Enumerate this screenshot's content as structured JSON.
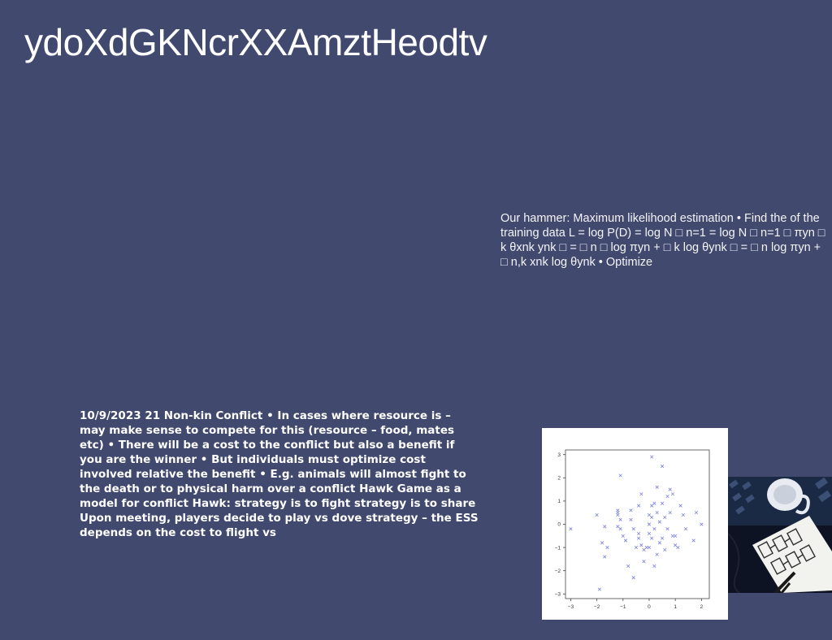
{
  "slide": {
    "title": "ydoXdGKNcrXXAmztHeodtv",
    "hammer_text": "Our hammer: Maximum likelihood estimation • Find the of the training data L = log P(D) = log N □ n=1 = log N □ n=1 □ πyn □ k θxnk ynk □ = □ n □ log πyn + □ k log θynk □ = □ n log πyn + □ n,k xnk log θynk • Optimize",
    "conflict_text": "10/9/2023 21 Non-kin Conflict • In cases where resource is – may make sense to compete for this (resource – food, mates etc) • There will be a cost to the conflict but also a benefit if you are the winner • But individuals must optimize cost involved relative the benefit • E.g. animals will almost fight to the death or to physical harm over a conflict Hawk Game as a model for conflict Hawk: strategy is to fight strategy is to share Upon meeting, players decide to play vs dove strategy – the ESS depends on the cost to flight vs"
  },
  "colors": {
    "background": "#41496f",
    "scatter_marker": "#7b7fe0"
  },
  "chart_data": {
    "type": "scatter",
    "x_ticks": [
      "−3",
      "−2",
      "−1",
      "0",
      "1",
      "2"
    ],
    "y_ticks": [
      "3",
      "2",
      "1",
      "0",
      "−1",
      "−2",
      "−3"
    ],
    "xlim": [
      -3.2,
      2.3
    ],
    "ylim": [
      -3.2,
      3.2
    ],
    "marker": "x",
    "points": [
      [
        0.1,
        2.9
      ],
      [
        -1.1,
        2.1
      ],
      [
        0.5,
        2.5
      ],
      [
        0.3,
        1.6
      ],
      [
        0.8,
        1.5
      ],
      [
        -0.3,
        1.3
      ],
      [
        -2.0,
        0.4
      ],
      [
        -1.2,
        0.6
      ],
      [
        -1.2,
        0.4
      ],
      [
        -0.7,
        0.6
      ],
      [
        -0.4,
        0.8
      ],
      [
        0.1,
        0.8
      ],
      [
        0.2,
        0.9
      ],
      [
        0.7,
        1.2
      ],
      [
        0.9,
        1.3
      ],
      [
        1.3,
        0.4
      ],
      [
        1.8,
        0.5
      ],
      [
        2.0,
        0.0
      ],
      [
        -3.0,
        -0.2
      ],
      [
        -1.7,
        -0.1
      ],
      [
        -1.8,
        -0.8
      ],
      [
        -1.6,
        -1.0
      ],
      [
        -1.7,
        -1.4
      ],
      [
        -1.2,
        -0.1
      ],
      [
        -1.1,
        0.2
      ],
      [
        -0.9,
        -0.7
      ],
      [
        -1.0,
        -0.5
      ],
      [
        -0.6,
        -0.2
      ],
      [
        -0.4,
        -0.6
      ],
      [
        -0.3,
        -0.9
      ],
      [
        -0.2,
        -1.1
      ],
      [
        -0.1,
        -1.0
      ],
      [
        0.0,
        -1.0
      ],
      [
        0.0,
        -0.4
      ],
      [
        0.0,
        0.0
      ],
      [
        0.1,
        -0.6
      ],
      [
        0.1,
        0.3
      ],
      [
        0.2,
        -0.2
      ],
      [
        0.3,
        0.5
      ],
      [
        0.3,
        -1.3
      ],
      [
        0.4,
        0.1
      ],
      [
        0.4,
        -0.8
      ],
      [
        0.5,
        -0.6
      ],
      [
        0.6,
        -1.1
      ],
      [
        0.6,
        0.3
      ],
      [
        0.7,
        -0.2
      ],
      [
        0.8,
        0.5
      ],
      [
        0.9,
        -0.5
      ],
      [
        1.0,
        -0.9
      ],
      [
        1.0,
        -0.5
      ],
      [
        1.1,
        -1.0
      ],
      [
        1.4,
        -0.2
      ],
      [
        1.7,
        -0.7
      ],
      [
        -0.5,
        -1.0
      ],
      [
        -0.8,
        -1.8
      ],
      [
        -0.6,
        -2.3
      ],
      [
        -1.9,
        -2.8
      ],
      [
        0.2,
        -1.8
      ],
      [
        -0.2,
        -1.6
      ],
      [
        -0.4,
        -0.4
      ],
      [
        0.0,
        0.4
      ],
      [
        -0.7,
        0.2
      ],
      [
        1.2,
        0.8
      ],
      [
        -1.1,
        -0.2
      ],
      [
        0.5,
        0.9
      ],
      [
        -1.2,
        0.5
      ]
    ]
  }
}
